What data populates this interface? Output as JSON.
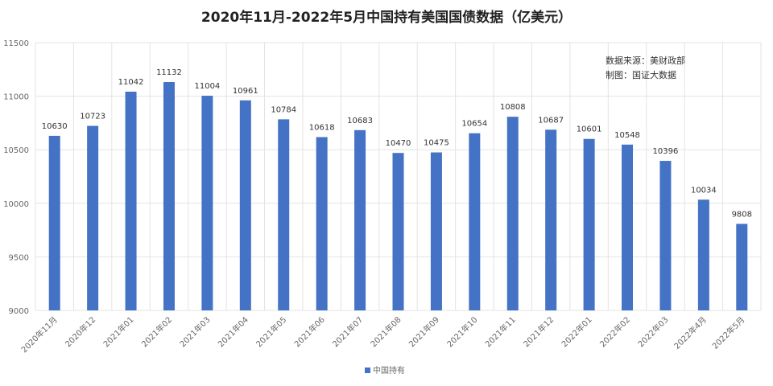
{
  "chart_data": {
    "type": "bar",
    "title": "2020年11月-2022年5月中国持有美国国债数据（亿美元）",
    "xlabel": "",
    "ylabel": "",
    "ylim": [
      9000,
      11500
    ],
    "yticks": [
      9000,
      9500,
      10000,
      10500,
      11000,
      11500
    ],
    "grid": true,
    "legend_position": "bottom",
    "categories": [
      "2020年11月",
      "2020年12",
      "2021年01",
      "2021年02",
      "2021年03",
      "2021年04",
      "2021年05",
      "2021年06",
      "2021年07",
      "2021年08",
      "2021年09",
      "2021年10",
      "2021年11",
      "2021年12",
      "2022年01",
      "2022年02",
      "2022年03",
      "2022年4月",
      "2022年5月"
    ],
    "series": [
      {
        "name": "中国持有",
        "color": "#4472C4",
        "values": [
          10630,
          10723,
          11042,
          11132,
          11004,
          10961,
          10784,
          10618,
          10683,
          10470,
          10475,
          10654,
          10808,
          10687,
          10601,
          10548,
          10396,
          10034,
          9808
        ]
      }
    ],
    "annotations": [
      "数据来源：美财政部",
      "制图：国证大数据"
    ]
  }
}
